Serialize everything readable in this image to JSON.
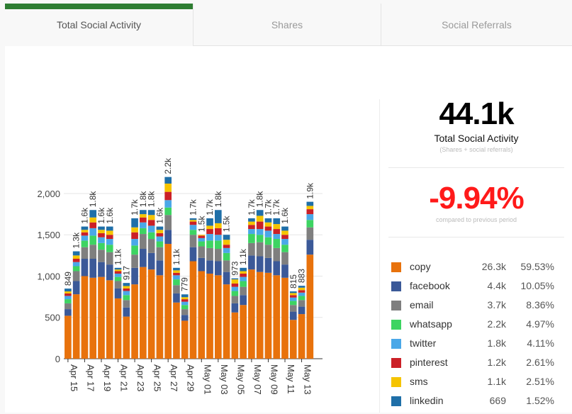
{
  "tabs": [
    {
      "label": "Total Social Activity",
      "active": true
    },
    {
      "label": "Shares",
      "active": false
    },
    {
      "label": "Social Referrals",
      "active": false
    }
  ],
  "summary": {
    "total_value": "44.1k",
    "total_label": "Total Social Activity",
    "total_sub": "(Shares + social referrals)",
    "change_value": "-9.94%",
    "change_label": "compared to previous period",
    "change_color": "#ff1a1a"
  },
  "legend": [
    {
      "name": "copy",
      "count": "26.3k",
      "pct": "59.53%",
      "color": "#e8720c"
    },
    {
      "name": "facebook",
      "count": "4.4k",
      "pct": "10.05%",
      "color": "#3b5998"
    },
    {
      "name": "email",
      "count": "3.7k",
      "pct": "8.36%",
      "color": "#7f7f7f"
    },
    {
      "name": "whatsapp",
      "count": "2.2k",
      "pct": "4.97%",
      "color": "#3dd462"
    },
    {
      "name": "twitter",
      "count": "1.8k",
      "pct": "4.11%",
      "color": "#4aa8e8"
    },
    {
      "name": "pinterest",
      "count": "1.2k",
      "pct": "2.61%",
      "color": "#cb2027"
    },
    {
      "name": "sms",
      "count": "1.1k",
      "pct": "2.51%",
      "color": "#f5c400"
    },
    {
      "name": "linkedin",
      "count": "669",
      "pct": "1.52%",
      "color": "#1f6fa8"
    }
  ],
  "chart_data": {
    "type": "bar",
    "stacked": true,
    "categories": [
      "Apr 15",
      "Apr 16",
      "Apr 17",
      "Apr 18",
      "Apr 19",
      "Apr 20",
      "Apr 21",
      "Apr 22",
      "Apr 23",
      "Apr 24",
      "Apr 25",
      "Apr 26",
      "Apr 27",
      "Apr 28",
      "Apr 29",
      "Apr 30",
      "May 01",
      "May 02",
      "May 03",
      "May 04",
      "May 05",
      "May 06",
      "May 07",
      "May 08",
      "May 09",
      "May 10",
      "May 11",
      "May 12",
      "May 13",
      "May 14",
      "May 15"
    ],
    "x_tick_labels": [
      "Apr 15",
      "Apr 17",
      "Apr 19",
      "Apr 21",
      "Apr 23",
      "Apr 25",
      "Apr 27",
      "Apr 29",
      "May 01",
      "May 03",
      "May 05",
      "May 07",
      "May 09",
      "May 11",
      "May 13"
    ],
    "totals": [
      849,
      1300,
      1600,
      1800,
      1600,
      1600,
      1100,
      917,
      1700,
      1800,
      1800,
      1600,
      2200,
      1100,
      779,
      1700,
      1500,
      1700,
      1800,
      1500,
      973,
      1100,
      1700,
      1800,
      1700,
      1700,
      1600,
      815,
      883,
      1900,
      null
    ],
    "total_labels": [
      "849",
      "1.3k",
      "1.6k",
      "1.8k",
      "1.6k",
      "1.6k",
      "1.1k",
      "917",
      "1.7k",
      "1.8k",
      "1.8k",
      "1.6k",
      "2.2k",
      "1.1k",
      "779",
      "1.7k",
      "1.5k",
      "1.7k",
      "1.8k",
      "1.5k",
      "973",
      "1.1k",
      "1.7k",
      "1.8k",
      "1.7k",
      "1.7k",
      "1.6k",
      "815",
      "883",
      "1.9k",
      ""
    ],
    "series": [
      {
        "name": "copy",
        "values": [
          520,
          780,
          1000,
          980,
          990,
          950,
          730,
          510,
          900,
          1110,
          1080,
          1010,
          1390,
          680,
          460,
          1180,
          1060,
          1030,
          1010,
          900,
          560,
          650,
          1080,
          1050,
          1040,
          1010,
          980,
          470,
          540,
          1260,
          0
        ]
      },
      {
        "name": "facebook",
        "values": [
          80,
          160,
          210,
          230,
          180,
          190,
          120,
          110,
          200,
          220,
          200,
          180,
          170,
          110,
          70,
          170,
          160,
          160,
          170,
          150,
          110,
          120,
          170,
          190,
          180,
          170,
          160,
          100,
          90,
          180,
          0
        ]
      },
      {
        "name": "email",
        "values": [
          70,
          120,
          140,
          170,
          150,
          150,
          90,
          90,
          160,
          180,
          170,
          160,
          180,
          100,
          70,
          150,
          140,
          150,
          150,
          140,
          90,
          100,
          150,
          170,
          160,
          160,
          150,
          80,
          80,
          150,
          0
        ]
      },
      {
        "name": "whatsapp",
        "values": [
          50,
          60,
          80,
          110,
          80,
          90,
          50,
          60,
          110,
          70,
          80,
          70,
          90,
          70,
          50,
          60,
          60,
          90,
          100,
          90,
          60,
          70,
          110,
          90,
          90,
          110,
          90,
          50,
          50,
          90,
          0
        ]
      },
      {
        "name": "twitter",
        "values": [
          40,
          50,
          60,
          90,
          70,
          70,
          40,
          50,
          80,
          70,
          80,
          60,
          90,
          50,
          40,
          60,
          40,
          80,
          70,
          60,
          50,
          50,
          60,
          70,
          80,
          60,
          70,
          40,
          40,
          70,
          0
        ]
      },
      {
        "name": "pinterest",
        "values": [
          30,
          40,
          40,
          70,
          50,
          50,
          30,
          30,
          80,
          60,
          70,
          40,
          100,
          30,
          30,
          40,
          30,
          60,
          80,
          40,
          40,
          40,
          50,
          90,
          50,
          60,
          50,
          30,
          30,
          60,
          0
        ]
      },
      {
        "name": "sms",
        "values": [
          25,
          40,
          30,
          60,
          40,
          50,
          20,
          30,
          60,
          40,
          60,
          40,
          100,
          30,
          25,
          20,
          10,
          40,
          60,
          60,
          50,
          30,
          40,
          70,
          50,
          60,
          50,
          25,
          30,
          40,
          0
        ]
      },
      {
        "name": "linkedin",
        "values": [
          34,
          50,
          40,
          90,
          40,
          50,
          20,
          37,
          110,
          50,
          60,
          40,
          80,
          30,
          34,
          20,
          0,
          90,
          160,
          60,
          13,
          40,
          40,
          70,
          50,
          70,
          50,
          20,
          23,
          50,
          0
        ]
      }
    ],
    "ylim": [
      0,
      2300
    ],
    "yticks": [
      0,
      500,
      1000,
      1500,
      2000
    ],
    "ytick_labels": [
      "0",
      "500",
      "1,000",
      "1,500",
      "2,000"
    ]
  }
}
